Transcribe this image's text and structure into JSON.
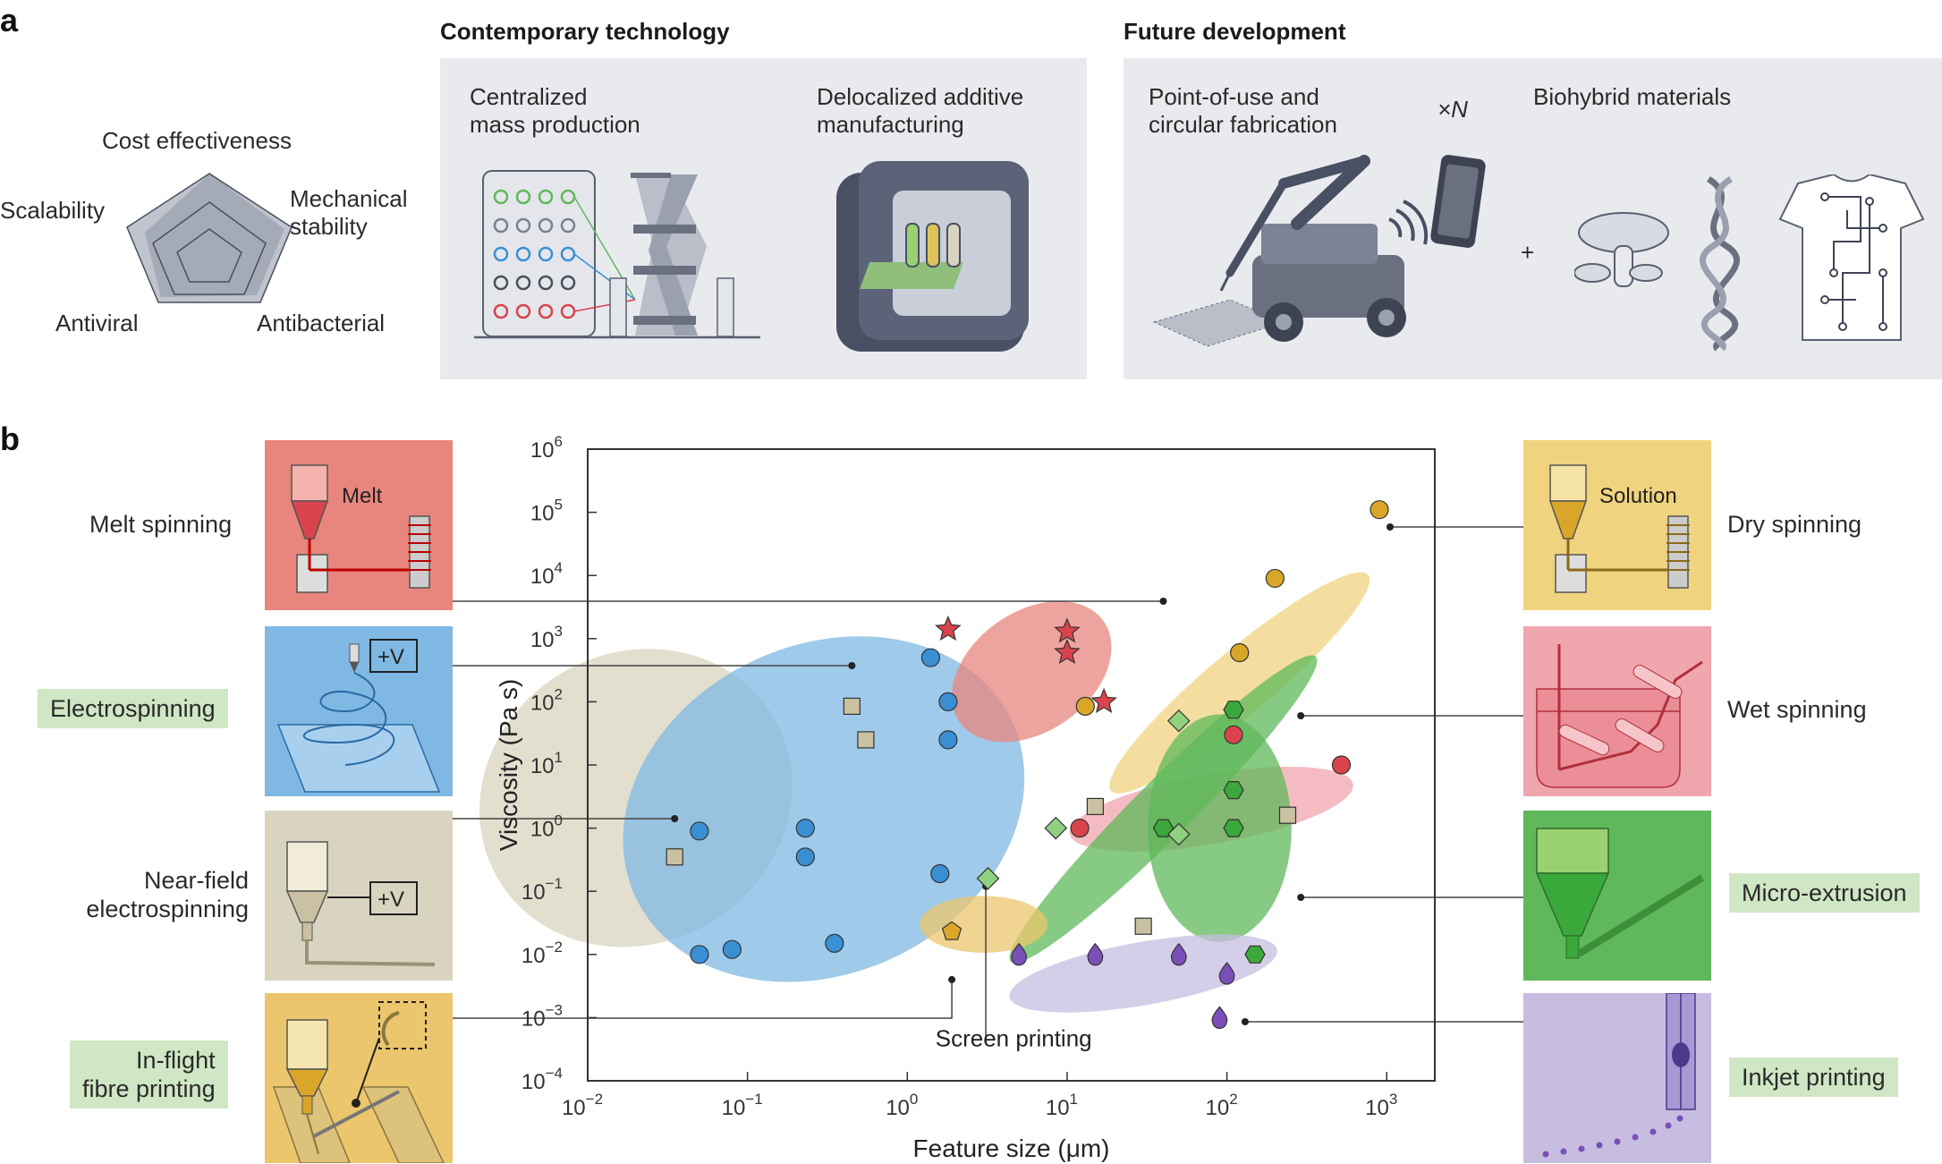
{
  "panel_a": {
    "letter": "a",
    "radar": {
      "labels": {
        "cost": "Cost effectiveness",
        "scalability": "Scalability",
        "mechanical": [
          "Mechanical",
          "stability"
        ],
        "antiviral": "Antiviral",
        "antibacterial": "Antibacterial"
      }
    },
    "contemporary": {
      "title": "Contemporary technology",
      "centralized": [
        "Centralized",
        "mass production"
      ],
      "delocalized": [
        "Delocalized additive",
        "manufacturing"
      ]
    },
    "future": {
      "title": "Future development",
      "point_of_use": [
        "Point-of-use and",
        "circular fabrication"
      ],
      "multiplier": "×N",
      "biohybrid": "Biohybrid materials",
      "plus": "+"
    }
  },
  "panel_b": {
    "letter": "b",
    "left_methods": [
      {
        "label": [
          "Melt spinning"
        ],
        "tagged": false,
        "tile_text": "Melt"
      },
      {
        "label": [
          "Electrospinning"
        ],
        "tagged": true,
        "tile_text": "+V"
      },
      {
        "label": [
          "Near-field",
          "electrospinning"
        ],
        "tagged": false,
        "tile_text": "+V"
      },
      {
        "label": [
          "In-flight",
          "fibre printing"
        ],
        "tagged": true,
        "tile_text": ""
      }
    ],
    "right_methods": [
      {
        "label": [
          "Dry spinning"
        ],
        "tagged": false,
        "tile_text": "Solution"
      },
      {
        "label": [
          "Wet spinning"
        ],
        "tagged": false,
        "tile_text": ""
      },
      {
        "label": [
          "Micro-extrusion"
        ],
        "tagged": true,
        "tile_text": ""
      },
      {
        "label": [
          "Inkjet printing"
        ],
        "tagged": true,
        "tile_text": ""
      }
    ],
    "colors": {
      "melt": "#e8857d",
      "electro": "#7fb8e3",
      "nearfield": "#d8d4bf",
      "inflight": "#ecc66c",
      "dry": "#f0d37f",
      "wet": "#f0a6ad",
      "micro": "#5fb85a",
      "inkjet": "#c7bde1"
    }
  },
  "chart_data": {
    "type": "scatter",
    "xlabel": "Feature size (μm)",
    "ylabel": "Viscosity (Pa s)",
    "x_scale": "log",
    "y_scale": "log",
    "xlim": [
      0.01,
      2000
    ],
    "ylim": [
      0.0001,
      1000000
    ],
    "x_ticks": [
      "10^-2",
      "10^-1",
      "10^0",
      "10^1",
      "10^2",
      "10^3"
    ],
    "y_ticks": [
      "10^-4",
      "10^-3",
      "10^-2",
      "10^-1",
      "10^0",
      "10^1",
      "10^2",
      "10^3",
      "10^4",
      "10^5",
      "10^6"
    ],
    "annotation": "Screen printing",
    "series": [
      {
        "method": "Melt spinning",
        "marker": "star",
        "color": "#d9434b",
        "points": [
          [
            1.8,
            1400
          ],
          [
            10,
            1300
          ],
          [
            10,
            600
          ],
          [
            17,
            100
          ]
        ]
      },
      {
        "method": "Electrospinning",
        "marker": "circle",
        "color": "#3a8fd3",
        "points": [
          [
            1.4,
            500
          ],
          [
            1.8,
            100
          ],
          [
            1.8,
            25
          ],
          [
            0.05,
            0.9
          ],
          [
            0.23,
            1.0
          ],
          [
            0.23,
            0.35
          ],
          [
            1.6,
            0.19
          ],
          [
            0.05,
            0.01
          ],
          [
            0.08,
            0.012
          ],
          [
            0.35,
            0.015
          ]
        ]
      },
      {
        "method": "Near-field electrospinning",
        "marker": "square",
        "color": "#c9c1a2",
        "points": [
          [
            0.45,
            85
          ],
          [
            0.55,
            25
          ],
          [
            0.035,
            0.35
          ],
          [
            15,
            2.2
          ],
          [
            240,
            1.6
          ],
          [
            30,
            0.028
          ]
        ]
      },
      {
        "method": "In-flight fibre printing",
        "marker": "pentagon",
        "color": "#d9a629",
        "points": [
          [
            1.9,
            0.023
          ]
        ]
      },
      {
        "method": "Dry spinning",
        "marker": "circle",
        "color": "#d9a629",
        "points": [
          [
            900,
            110000
          ],
          [
            200,
            9000
          ],
          [
            120,
            600
          ],
          [
            13,
            85
          ]
        ]
      },
      {
        "method": "Wet spinning",
        "marker": "circle",
        "color": "#d9434b",
        "points": [
          [
            110,
            30
          ],
          [
            520,
            10
          ],
          [
            12,
            1.0
          ]
        ]
      },
      {
        "method": "Micro-extrusion",
        "marker": "hexagon",
        "color": "#3aa83a",
        "points": [
          [
            110,
            75
          ],
          [
            110,
            4.0
          ],
          [
            110,
            1.0
          ],
          [
            40,
            1.0
          ],
          [
            150,
            0.01
          ]
        ]
      },
      {
        "method": "Micro-extrusion (diamond)",
        "marker": "diamond",
        "color": "#8fd17f",
        "points": [
          [
            50,
            50
          ],
          [
            8.5,
            1.0
          ],
          [
            50,
            0.8
          ],
          [
            3.2,
            0.16
          ]
        ]
      },
      {
        "method": "Inkjet printing",
        "marker": "drop",
        "color": "#7a4fb8",
        "points": [
          [
            5,
            0.01
          ],
          [
            15,
            0.01
          ],
          [
            50,
            0.01
          ],
          [
            100,
            0.005
          ],
          [
            90,
            0.001
          ]
        ]
      }
    ]
  }
}
